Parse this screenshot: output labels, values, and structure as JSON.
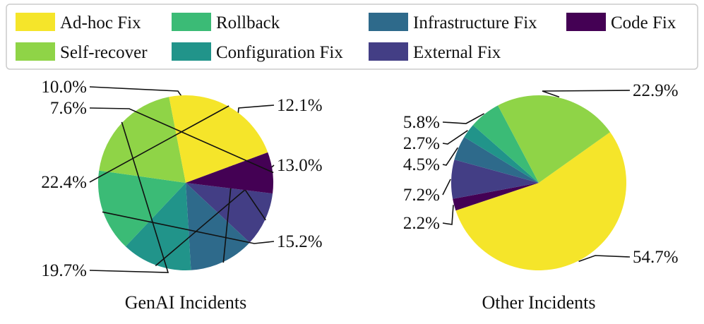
{
  "colors": {
    "Ad-hoc Fix": "#f5e52a",
    "Rollback": "#3bbb76",
    "Infrastructure Fix": "#2e6a8b",
    "Code Fix": "#440154",
    "Self-recover": "#8fd447",
    "Configuration Fix": "#21948a",
    "External Fix": "#433e85"
  },
  "chart_data": {
    "type": "pie",
    "legend": {
      "placement": "top",
      "entries": [
        "Ad-hoc Fix",
        "Rollback",
        "Infrastructure Fix",
        "Code Fix",
        "Self-recover",
        "Configuration Fix",
        "External Fix"
      ]
    },
    "charts": [
      {
        "title": "GenAI Incidents",
        "slices": [
          {
            "category": "External Fix",
            "value": 10.0,
            "label": "10.0%"
          },
          {
            "category": "Infrastructure Fix",
            "value": 12.1,
            "label": "12.1%"
          },
          {
            "category": "Configuration Fix",
            "value": 13.0,
            "label": "13.0%"
          },
          {
            "category": "Rollback",
            "value": 15.2,
            "label": "15.2%"
          },
          {
            "category": "Self-recover",
            "value": 19.7,
            "label": "19.7%"
          },
          {
            "category": "Ad-hoc Fix",
            "value": 22.4,
            "label": "22.4%"
          },
          {
            "category": "Code Fix",
            "value": 7.6,
            "label": "7.6%"
          }
        ]
      },
      {
        "title": "Other Incidents",
        "slices": [
          {
            "category": "Ad-hoc Fix",
            "value": 54.7,
            "label": "54.7%"
          },
          {
            "category": "Code Fix",
            "value": 2.2,
            "label": "2.2%"
          },
          {
            "category": "External Fix",
            "value": 7.2,
            "label": "7.2%"
          },
          {
            "category": "Infrastructure Fix",
            "value": 4.5,
            "label": "4.5%"
          },
          {
            "category": "Configuration Fix",
            "value": 2.7,
            "label": "2.7%"
          },
          {
            "category": "Rollback",
            "value": 5.8,
            "label": "5.8%"
          },
          {
            "category": "Self-recover",
            "value": 22.9,
            "label": "22.9%"
          }
        ]
      }
    ]
  }
}
